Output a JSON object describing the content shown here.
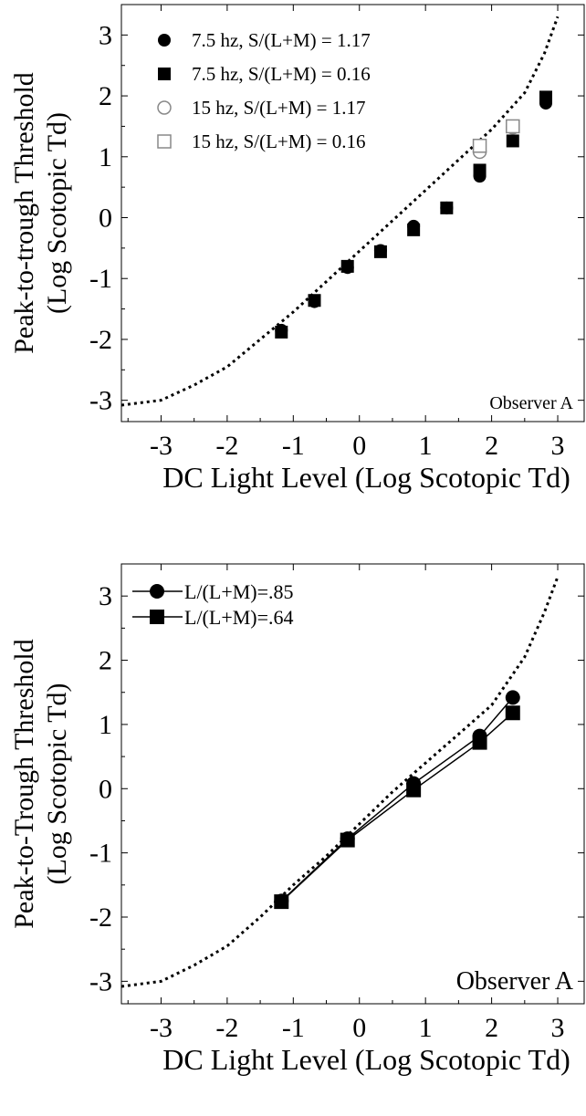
{
  "chart_data": [
    {
      "type": "scatter",
      "xlabel": "DC Light Level (Log Scotopic Td)",
      "ylabel": "Peak-to-trough Threshold",
      "ylabel2": "(Log Scotopic Td)",
      "annotation": "Observer A",
      "xlim": [
        -3.6,
        3.4
      ],
      "ylim": [
        -3.35,
        3.5
      ],
      "xticks": [
        "-3",
        "-2",
        "-1",
        "0",
        "1",
        "2",
        "3"
      ],
      "yticks": [
        "3",
        "2",
        "1",
        "0",
        "-1",
        "-2",
        "-3"
      ],
      "grid": false,
      "legend_position": "top-left",
      "reference_curve": {
        "style": "dotted",
        "x": [
          -3.6,
          -3.0,
          -2.5,
          -2.0,
          -1.5,
          -1.0,
          -0.5,
          0.0,
          0.5,
          1.0,
          1.5,
          2.0,
          2.5,
          2.8,
          3.0
        ],
        "y": [
          -3.08,
          -3.0,
          -2.75,
          -2.45,
          -2.0,
          -1.55,
          -1.05,
          -0.55,
          -0.05,
          0.45,
          0.95,
          1.45,
          2.05,
          2.7,
          3.3
        ]
      },
      "series": [
        {
          "name": "7.5 hz, S/(L+M) = 1.17",
          "marker": "filled-circle",
          "x": [
            -1.18,
            -0.68,
            -0.18,
            0.32,
            0.82,
            1.32,
            1.82,
            2.82
          ],
          "y": [
            -1.85,
            -1.38,
            -0.82,
            -0.54,
            -0.14,
            0.16,
            0.68,
            1.88
          ]
        },
        {
          "name": "7.5 hz, S/(L+M) = 0.16",
          "marker": "filled-square",
          "x": [
            -1.18,
            -0.68,
            -0.18,
            0.32,
            0.82,
            1.32,
            1.82,
            2.32,
            2.82
          ],
          "y": [
            -1.88,
            -1.36,
            -0.8,
            -0.56,
            -0.2,
            0.16,
            0.78,
            1.26,
            1.98
          ]
        },
        {
          "name": "15 hz,  S/(L+M) = 1.17",
          "marker": "open-circle",
          "x": [
            1.82,
            2.32
          ],
          "y": [
            1.08,
            1.48
          ]
        },
        {
          "name": "15 hz, S/(L+M) = 0.16",
          "marker": "open-square",
          "x": [
            1.82,
            2.32
          ],
          "y": [
            1.18,
            1.5
          ]
        }
      ]
    },
    {
      "type": "line",
      "xlabel": "DC Light Level (Log Scotopic Td)",
      "ylabel": "Peak-to-Trough Threshold",
      "ylabel2": "(Log Scotopic Td)",
      "annotation": "Observer A",
      "xlim": [
        -3.6,
        3.4
      ],
      "ylim": [
        -3.35,
        3.5
      ],
      "xticks": [
        "-3",
        "-2",
        "-1",
        "0",
        "1",
        "2",
        "3"
      ],
      "yticks": [
        "3",
        "2",
        "1",
        "0",
        "-1",
        "-2",
        "-3"
      ],
      "grid": false,
      "legend_position": "top-left",
      "reference_curve": {
        "style": "dotted",
        "x": [
          -3.6,
          -3.0,
          -2.5,
          -2.0,
          -1.5,
          -1.0,
          -0.5,
          0.0,
          0.5,
          1.0,
          1.5,
          2.0,
          2.5,
          2.8,
          3.0
        ],
        "y": [
          -3.08,
          -3.0,
          -2.75,
          -2.45,
          -2.0,
          -1.5,
          -1.05,
          -0.55,
          -0.05,
          0.4,
          0.85,
          1.3,
          2.05,
          2.75,
          3.3
        ]
      },
      "series": [
        {
          "name": "L/(L+M)=.85",
          "marker": "filled-circle",
          "x": [
            -1.18,
            -0.18,
            0.82,
            1.82,
            2.32
          ],
          "y": [
            -1.75,
            -0.78,
            0.08,
            0.82,
            1.42
          ]
        },
        {
          "name": "L/(L+M)=.64",
          "marker": "filled-square",
          "x": [
            -1.18,
            -0.18,
            0.82,
            1.82,
            2.32
          ],
          "y": [
            -1.76,
            -0.8,
            -0.02,
            0.72,
            1.18
          ]
        }
      ]
    }
  ]
}
